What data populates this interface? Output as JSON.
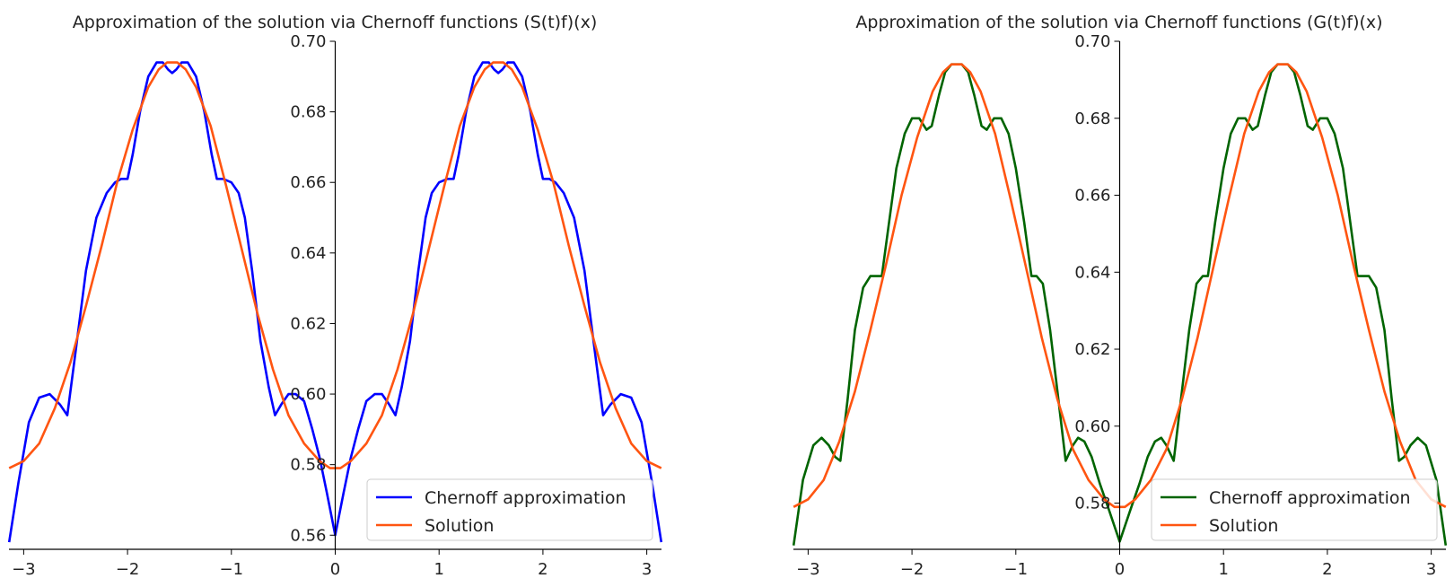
{
  "chart_data": [
    {
      "type": "line",
      "title": "Approximation of the solution via Chernoff functions (S(t)f)(x)",
      "xlabel": "",
      "ylabel": "",
      "xlim": [
        -3.14159,
        3.14159
      ],
      "ylim": [
        0.556,
        0.7
      ],
      "xticks": [
        -3,
        -2,
        -1,
        0,
        1,
        2,
        3
      ],
      "xtick_labels": [
        "−3",
        "−2",
        "−1",
        "0",
        "1",
        "2",
        "3"
      ],
      "yticks": [
        0.56,
        0.58,
        0.6,
        0.62,
        0.64,
        0.66,
        0.68,
        0.7
      ],
      "ytick_labels": [
        "0.56",
        "0.58",
        "0.60",
        "0.62",
        "0.64",
        "0.66",
        "0.68",
        "0.70"
      ],
      "grid": false,
      "legend_position": "lower-right",
      "series": [
        {
          "name": "Chernoff approximation",
          "color": "#0000ff",
          "x": [
            -3.14,
            -3.05,
            -2.95,
            -2.85,
            -2.75,
            -2.65,
            -2.58,
            -2.5,
            -2.4,
            -2.3,
            -2.2,
            -2.12,
            -2.06,
            -2.0,
            -1.95,
            -1.88,
            -1.8,
            -1.72,
            -1.66,
            -1.61,
            -1.57,
            -1.53,
            -1.48,
            -1.42,
            -1.34,
            -1.26,
            -1.19,
            -1.14,
            -1.08,
            -1.0,
            -0.93,
            -0.87,
            -0.8,
            -0.72,
            -0.64,
            -0.58,
            -0.52,
            -0.45,
            -0.38,
            -0.3,
            -0.22,
            -0.15,
            -0.08,
            0.0,
            0.08,
            0.15,
            0.22,
            0.3,
            0.38,
            0.45,
            0.52,
            0.58,
            0.64,
            0.72,
            0.8,
            0.87,
            0.93,
            1.0,
            1.08,
            1.14,
            1.19,
            1.26,
            1.34,
            1.42,
            1.48,
            1.53,
            1.57,
            1.61,
            1.66,
            1.72,
            1.8,
            1.88,
            1.95,
            2.0,
            2.06,
            2.12,
            2.2,
            2.3,
            2.4,
            2.5,
            2.58,
            2.65,
            2.75,
            2.85,
            2.95,
            3.05,
            3.14
          ],
          "y": [
            0.558,
            0.575,
            0.592,
            0.599,
            0.6,
            0.597,
            0.594,
            0.612,
            0.635,
            0.65,
            0.657,
            0.66,
            0.661,
            0.661,
            0.668,
            0.68,
            0.69,
            0.694,
            0.694,
            0.692,
            0.691,
            0.692,
            0.694,
            0.694,
            0.69,
            0.68,
            0.668,
            0.661,
            0.661,
            0.66,
            0.657,
            0.65,
            0.635,
            0.615,
            0.602,
            0.594,
            0.597,
            0.6,
            0.6,
            0.598,
            0.59,
            0.582,
            0.572,
            0.56,
            0.572,
            0.582,
            0.59,
            0.598,
            0.6,
            0.6,
            0.597,
            0.594,
            0.602,
            0.615,
            0.635,
            0.65,
            0.657,
            0.66,
            0.661,
            0.661,
            0.668,
            0.68,
            0.69,
            0.694,
            0.694,
            0.692,
            0.691,
            0.692,
            0.694,
            0.694,
            0.69,
            0.68,
            0.668,
            0.661,
            0.661,
            0.66,
            0.657,
            0.65,
            0.635,
            0.612,
            0.594,
            0.597,
            0.6,
            0.599,
            0.592,
            0.575,
            0.558
          ]
        },
        {
          "name": "Solution",
          "color": "#ff5511",
          "x": "solution_curve",
          "y": "solution_curve"
        }
      ]
    },
    {
      "type": "line",
      "title": "Approximation of the solution via Chernoff functions (G(t)f)(x)",
      "xlabel": "",
      "ylabel": "",
      "xlim": [
        -3.14159,
        3.14159
      ],
      "ylim": [
        0.568,
        0.7
      ],
      "xticks": [
        -3,
        -2,
        -1,
        0,
        1,
        2,
        3
      ],
      "xtick_labels": [
        "−3",
        "−2",
        "−1",
        "0",
        "1",
        "2",
        "3"
      ],
      "yticks": [
        0.58,
        0.6,
        0.62,
        0.64,
        0.66,
        0.68,
        0.7
      ],
      "ytick_labels": [
        "0.58",
        "0.60",
        "0.62",
        "0.64",
        "0.66",
        "0.68",
        "0.70"
      ],
      "grid": false,
      "legend_position": "lower-right",
      "series": [
        {
          "name": "Chernoff approximation",
          "color": "#006400",
          "x": [
            -3.14,
            -3.05,
            -2.95,
            -2.87,
            -2.8,
            -2.74,
            -2.69,
            -2.62,
            -2.55,
            -2.47,
            -2.4,
            -2.34,
            -2.29,
            -2.22,
            -2.15,
            -2.07,
            -2.0,
            -1.93,
            -1.86,
            -1.81,
            -1.74,
            -1.68,
            -1.62,
            -1.57,
            -1.52,
            -1.46,
            -1.4,
            -1.33,
            -1.28,
            -1.21,
            -1.14,
            -1.07,
            -1.0,
            -0.92,
            -0.85,
            -0.8,
            -0.74,
            -0.67,
            -0.59,
            -0.52,
            -0.45,
            -0.4,
            -0.34,
            -0.27,
            -0.19,
            -0.1,
            0.0,
            0.1,
            0.19,
            0.27,
            0.34,
            0.4,
            0.45,
            0.52,
            0.59,
            0.67,
            0.74,
            0.8,
            0.85,
            0.92,
            1.0,
            1.07,
            1.14,
            1.21,
            1.28,
            1.33,
            1.4,
            1.46,
            1.52,
            1.57,
            1.62,
            1.68,
            1.74,
            1.81,
            1.86,
            1.93,
            2.0,
            2.07,
            2.15,
            2.22,
            2.29,
            2.34,
            2.4,
            2.47,
            2.55,
            2.62,
            2.69,
            2.74,
            2.8,
            2.87,
            2.95,
            3.05,
            3.14
          ],
          "y": [
            0.569,
            0.586,
            0.595,
            0.597,
            0.595,
            0.592,
            0.591,
            0.607,
            0.625,
            0.636,
            0.639,
            0.639,
            0.639,
            0.653,
            0.667,
            0.676,
            0.68,
            0.68,
            0.677,
            0.678,
            0.686,
            0.692,
            0.694,
            0.694,
            0.694,
            0.692,
            0.686,
            0.678,
            0.677,
            0.68,
            0.68,
            0.676,
            0.667,
            0.653,
            0.639,
            0.639,
            0.637,
            0.625,
            0.607,
            0.591,
            0.595,
            0.597,
            0.596,
            0.592,
            0.585,
            0.578,
            0.57,
            0.578,
            0.585,
            0.592,
            0.596,
            0.597,
            0.595,
            0.591,
            0.607,
            0.625,
            0.637,
            0.639,
            0.639,
            0.653,
            0.667,
            0.676,
            0.68,
            0.68,
            0.677,
            0.678,
            0.686,
            0.692,
            0.694,
            0.694,
            0.694,
            0.692,
            0.686,
            0.678,
            0.677,
            0.68,
            0.68,
            0.676,
            0.667,
            0.653,
            0.639,
            0.639,
            0.639,
            0.636,
            0.625,
            0.607,
            0.591,
            0.592,
            0.595,
            0.597,
            0.595,
            0.586,
            0.569
          ]
        },
        {
          "name": "Solution",
          "color": "#ff5511",
          "x": "solution_curve",
          "y": "solution_curve"
        }
      ]
    }
  ],
  "solution_curve": {
    "x": [
      -3.14,
      -3.0,
      -2.85,
      -2.7,
      -2.55,
      -2.4,
      -2.25,
      -2.1,
      -1.95,
      -1.8,
      -1.7,
      -1.62,
      -1.57,
      -1.52,
      -1.44,
      -1.34,
      -1.2,
      -1.05,
      -0.9,
      -0.75,
      -0.6,
      -0.45,
      -0.3,
      -0.15,
      -0.05,
      0.0,
      0.05,
      0.15,
      0.3,
      0.45,
      0.6,
      0.75,
      0.9,
      1.05,
      1.2,
      1.34,
      1.44,
      1.52,
      1.57,
      1.62,
      1.7,
      1.8,
      1.95,
      2.1,
      2.25,
      2.4,
      2.55,
      2.7,
      2.85,
      3.0,
      3.14
    ],
    "y": [
      0.579,
      0.581,
      0.586,
      0.596,
      0.609,
      0.625,
      0.642,
      0.66,
      0.675,
      0.687,
      0.692,
      0.694,
      0.694,
      0.694,
      0.692,
      0.687,
      0.676,
      0.659,
      0.641,
      0.623,
      0.607,
      0.594,
      0.586,
      0.581,
      0.579,
      0.579,
      0.579,
      0.581,
      0.586,
      0.594,
      0.607,
      0.623,
      0.641,
      0.659,
      0.676,
      0.687,
      0.692,
      0.694,
      0.694,
      0.694,
      0.692,
      0.687,
      0.675,
      0.66,
      0.642,
      0.625,
      0.609,
      0.596,
      0.586,
      0.581,
      0.579
    ]
  }
}
